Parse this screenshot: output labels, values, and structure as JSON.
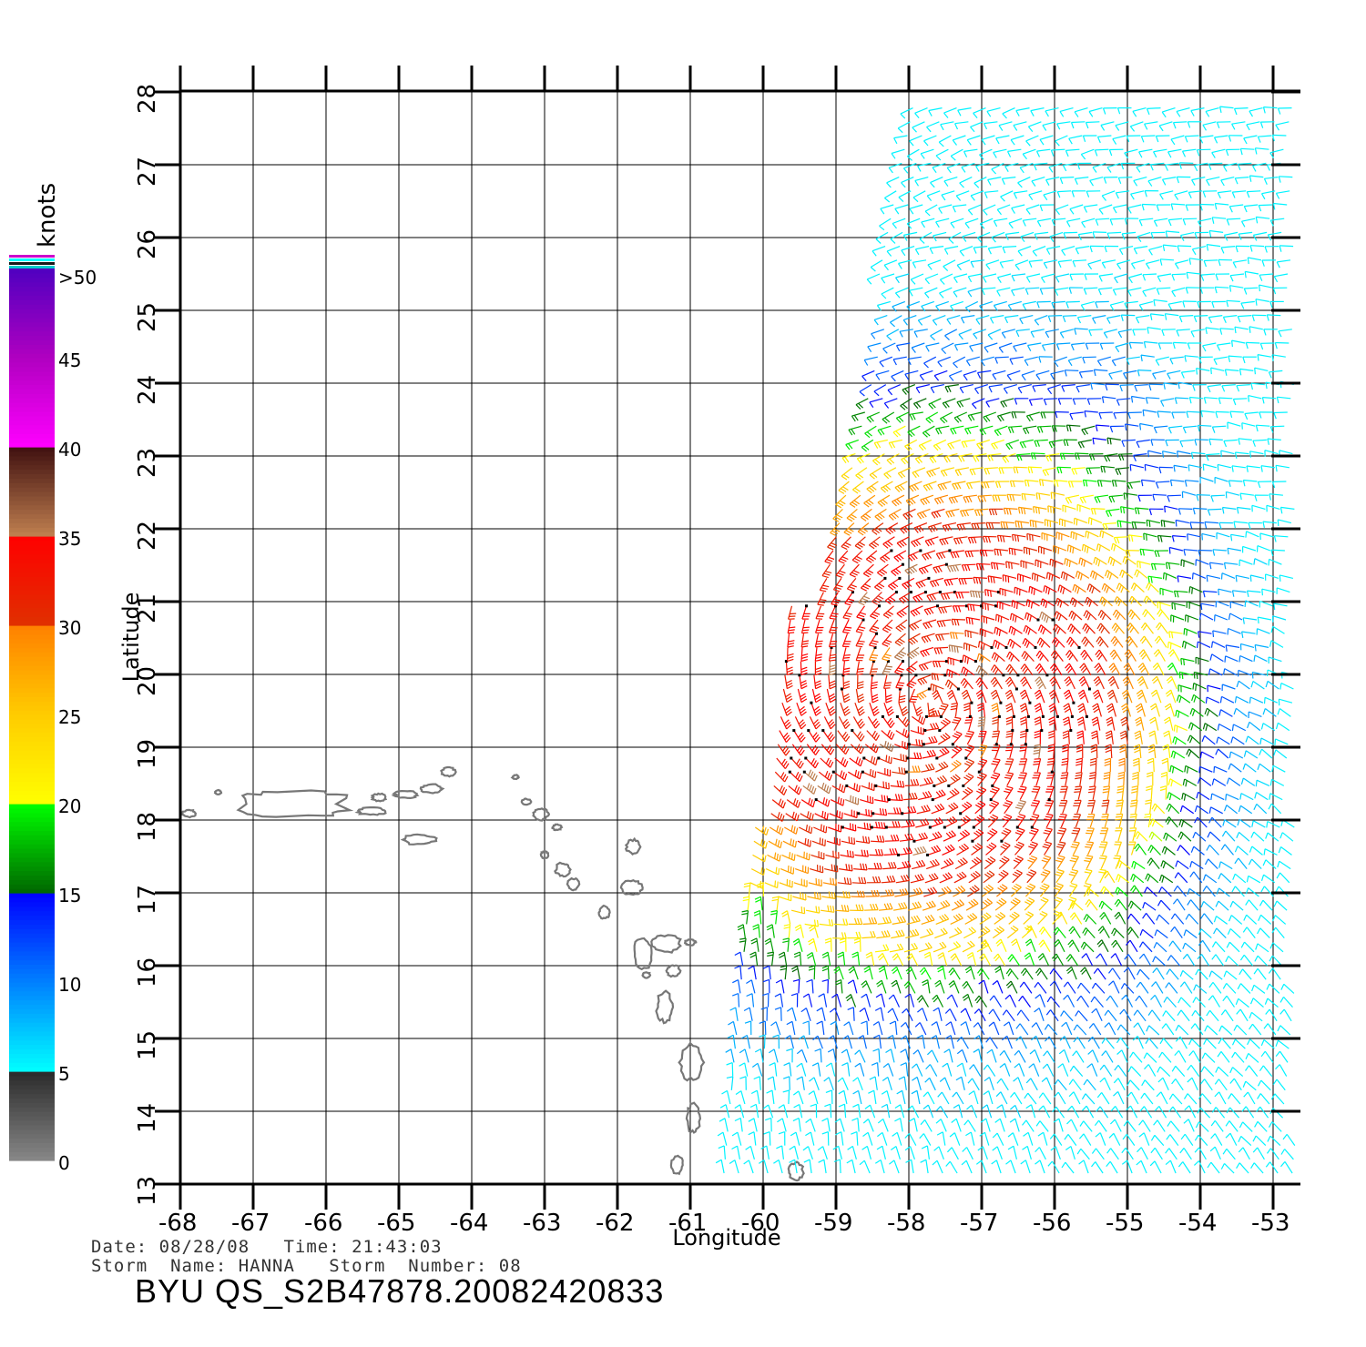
{
  "map": {
    "lon_range": [
      -68,
      -52.6
    ],
    "lat_range": [
      13,
      28
    ],
    "lon_ticks": [
      "-68",
      "-67",
      "-66",
      "-65",
      "-64",
      "-63",
      "-62",
      "-61",
      "-60",
      "-59",
      "-58",
      "-57",
      "-56",
      "-55",
      "-54",
      "-53"
    ],
    "lat_ticks": [
      "13",
      "14",
      "15",
      "16",
      "17",
      "18",
      "19",
      "20",
      "21",
      "22",
      "23",
      "24",
      "25",
      "26",
      "27",
      "28"
    ],
    "xlabel": "Longitude",
    "ylabel": "Latitude",
    "grid": true,
    "land_color": "#777777"
  },
  "colorbar": {
    "unit_label": "knots",
    "labels": [
      "0",
      "5",
      "10",
      "15",
      "20",
      "25",
      "30",
      "35",
      "40",
      "45",
      ">50"
    ],
    "stops": [
      {
        "kn": 0,
        "color": "#888888"
      },
      {
        "kn": 5,
        "color": "#2a2a2a"
      },
      {
        "kn": 5.01,
        "color": "#00ffff"
      },
      {
        "kn": 10,
        "color": "#0080ff"
      },
      {
        "kn": 15,
        "color": "#0000ff"
      },
      {
        "kn": 15.01,
        "color": "#006600"
      },
      {
        "kn": 20,
        "color": "#00ff00"
      },
      {
        "kn": 20.01,
        "color": "#ffff00"
      },
      {
        "kn": 25,
        "color": "#ffcc00"
      },
      {
        "kn": 30,
        "color": "#ff8000"
      },
      {
        "kn": 30.01,
        "color": "#e03000"
      },
      {
        "kn": 35,
        "color": "#ff0000"
      },
      {
        "kn": 35.01,
        "color": "#c08050"
      },
      {
        "kn": 40,
        "color": "#401010"
      },
      {
        "kn": 40.01,
        "color": "#ff00ff"
      },
      {
        "kn": 45,
        "color": "#b000c0"
      },
      {
        "kn": 50,
        "color": "#5000c0"
      }
    ]
  },
  "storm": {
    "center_lon": -57.7,
    "center_lat": 19.6
  },
  "info": {
    "line1": "Date: 08/28/08   Time: 21:43:03",
    "line2": "Storm  Name: HANNA   Storm  Number: 08",
    "title": "BYU  QS_S2B47878.20082420833"
  },
  "islands": [
    {
      "name": "Puerto Rico",
      "lon": -66.45,
      "lat": 18.22,
      "rlon": 0.72,
      "rlat": 0.17
    },
    {
      "name": "Mona",
      "lon": -67.88,
      "lat": 18.09,
      "rlon": 0.09,
      "rlat": 0.05
    },
    {
      "name": "Desecheo",
      "lon": -67.48,
      "lat": 18.38,
      "rlon": 0.04,
      "rlat": 0.03
    },
    {
      "name": "Vieques",
      "lon": -65.37,
      "lat": 18.12,
      "rlon": 0.2,
      "rlat": 0.05
    },
    {
      "name": "Culebra",
      "lon": -65.27,
      "lat": 18.31,
      "rlon": 0.1,
      "rlat": 0.05
    },
    {
      "name": "St Thomas",
      "lon": -64.9,
      "lat": 18.35,
      "rlon": 0.16,
      "rlat": 0.05
    },
    {
      "name": "Tortola",
      "lon": -64.55,
      "lat": 18.43,
      "rlon": 0.14,
      "rlat": 0.06
    },
    {
      "name": "Virgin Gorda",
      "lon": -64.32,
      "lat": 18.66,
      "rlon": 0.1,
      "rlat": 0.06
    },
    {
      "name": "St Croix",
      "lon": -64.72,
      "lat": 17.73,
      "rlon": 0.22,
      "rlat": 0.07
    },
    {
      "name": "Sombrero",
      "lon": -63.4,
      "lat": 18.59,
      "rlon": 0.04,
      "rlat": 0.03
    },
    {
      "name": "Anguilla",
      "lon": -63.25,
      "lat": 18.25,
      "rlon": 0.06,
      "rlat": 0.04
    },
    {
      "name": "St Martin",
      "lon": -63.05,
      "lat": 18.08,
      "rlon": 0.1,
      "rlat": 0.08
    },
    {
      "name": "St Barthelemy",
      "lon": -62.83,
      "lat": 17.9,
      "rlon": 0.06,
      "rlat": 0.04
    },
    {
      "name": "Saba",
      "lon": -63.0,
      "lat": 17.52,
      "rlon": 0.05,
      "rlat": 0.05
    },
    {
      "name": "St Kitts",
      "lon": -62.75,
      "lat": 17.32,
      "rlon": 0.1,
      "rlat": 0.09
    },
    {
      "name": "Nevis",
      "lon": -62.6,
      "lat": 17.12,
      "rlon": 0.08,
      "rlat": 0.08
    },
    {
      "name": "Barbuda",
      "lon": -61.78,
      "lat": 17.63,
      "rlon": 0.1,
      "rlat": 0.1
    },
    {
      "name": "Antigua",
      "lon": -61.8,
      "lat": 17.07,
      "rlon": 0.14,
      "rlat": 0.1
    },
    {
      "name": "Montserrat",
      "lon": -62.18,
      "lat": 16.73,
      "rlon": 0.07,
      "rlat": 0.09
    },
    {
      "name": "Guadeloupe W",
      "lon": -61.65,
      "lat": 16.17,
      "rlon": 0.13,
      "rlat": 0.22
    },
    {
      "name": "Guadeloupe E",
      "lon": -61.33,
      "lat": 16.3,
      "rlon": 0.2,
      "rlat": 0.12
    },
    {
      "name": "La Desirade",
      "lon": -61.0,
      "lat": 16.32,
      "rlon": 0.07,
      "rlat": 0.04
    },
    {
      "name": "Marie-Galante",
      "lon": -61.23,
      "lat": 15.93,
      "rlon": 0.09,
      "rlat": 0.08
    },
    {
      "name": "Les Saintes",
      "lon": -61.6,
      "lat": 15.87,
      "rlon": 0.05,
      "rlat": 0.04
    },
    {
      "name": "Dominica",
      "lon": -61.35,
      "lat": 15.43,
      "rlon": 0.11,
      "rlat": 0.21
    },
    {
      "name": "Martinique",
      "lon": -60.98,
      "lat": 14.67,
      "rlon": 0.16,
      "rlat": 0.24
    },
    {
      "name": "St Lucia",
      "lon": -60.96,
      "lat": 13.9,
      "rlon": 0.09,
      "rlat": 0.2
    },
    {
      "name": "St Vincent",
      "lon": -61.18,
      "lat": 13.26,
      "rlon": 0.08,
      "rlat": 0.13
    },
    {
      "name": "Barbados",
      "lon": -59.55,
      "lat": 13.18,
      "rlon": 0.1,
      "rlat": 0.12
    }
  ]
}
